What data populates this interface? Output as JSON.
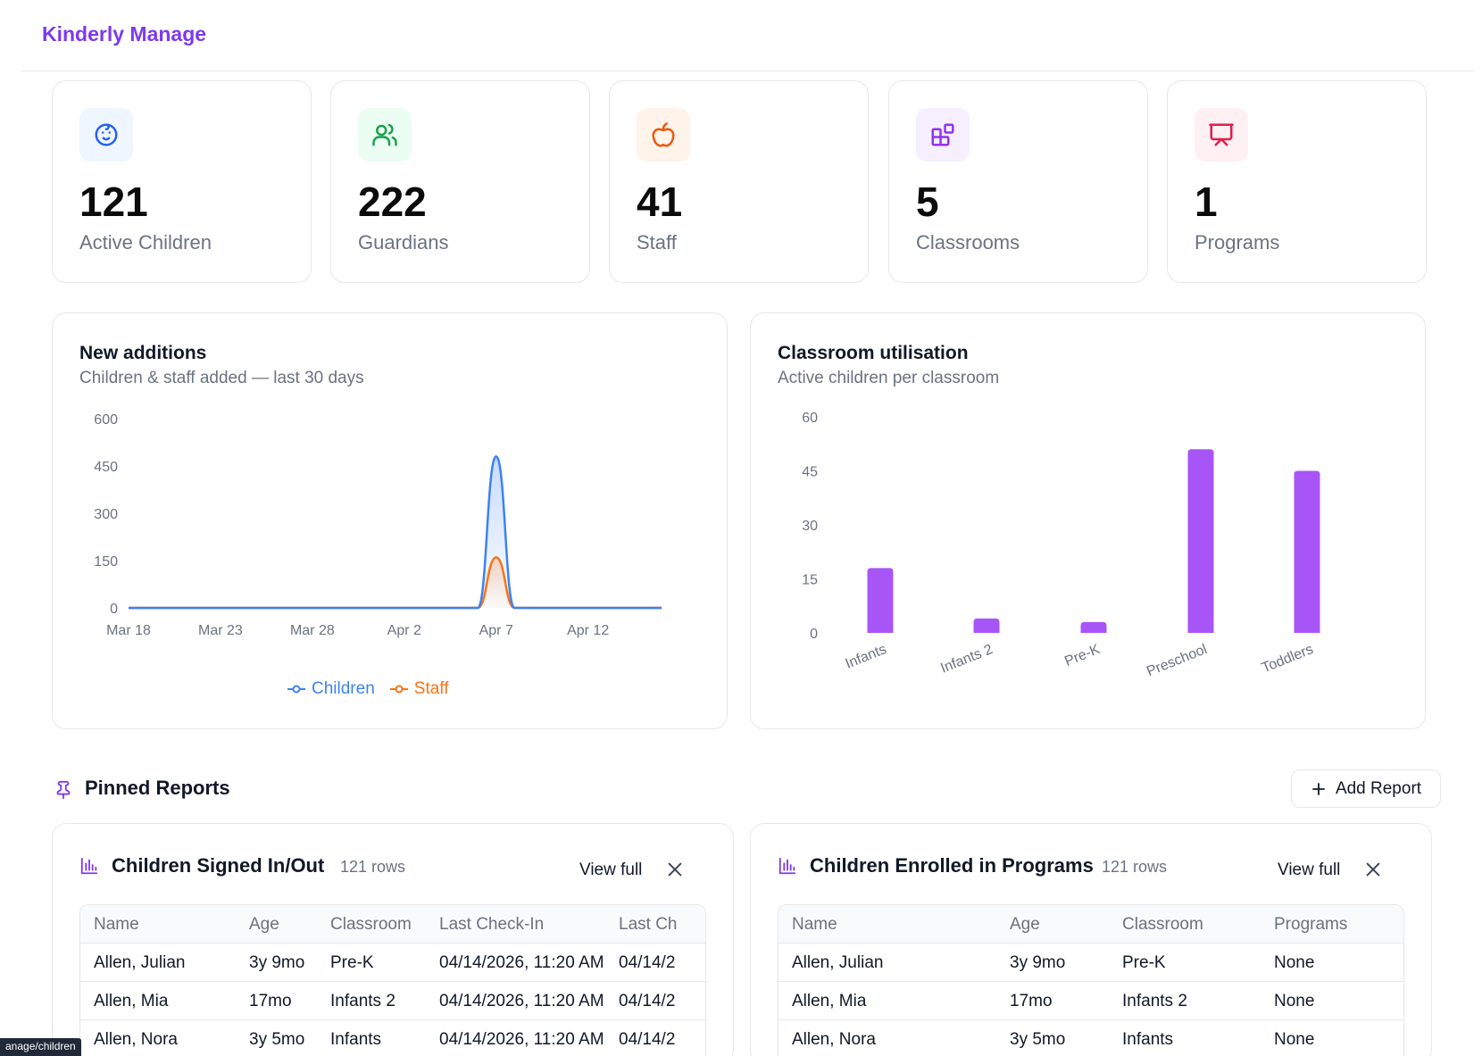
{
  "app": {
    "brand": "Kinderly Manage"
  },
  "stats": [
    {
      "value": "121",
      "label": "Active Children",
      "icon": "baby-face-icon",
      "icon_color": "#2563eb",
      "bg": "#eff6ff"
    },
    {
      "value": "222",
      "label": "Guardians",
      "icon": "users-icon",
      "icon_color": "#16a34a",
      "bg": "#ecfdf3"
    },
    {
      "value": "41",
      "label": "Staff",
      "icon": "apple-icon",
      "icon_color": "#ea580c",
      "bg": "#fff3ea"
    },
    {
      "value": "5",
      "label": "Classrooms",
      "icon": "blocks-icon",
      "icon_color": "#9333ea",
      "bg": "#f5efff"
    },
    {
      "value": "1",
      "label": "Programs",
      "icon": "presentation-icon",
      "icon_color": "#e11d48",
      "bg": "#fff0f3"
    }
  ],
  "new_additions": {
    "title": "New additions",
    "subtitle": "Children & staff added — last 30 days",
    "legend": [
      {
        "name": "Children",
        "color": "#3b82f6"
      },
      {
        "name": "Staff",
        "color": "#f97316"
      }
    ]
  },
  "classroom_utilisation": {
    "title": "Classroom utilisation",
    "subtitle": "Active children per classroom",
    "bar_color": "#a855f7"
  },
  "chart_data": [
    {
      "type": "area",
      "title": "New additions",
      "subtitle": "Children & staff added — last 30 days",
      "x_ticks": [
        "Mar 18",
        "Mar 23",
        "Mar 28",
        "Apr 2",
        "Apr 7",
        "Apr 12"
      ],
      "y_ticks": [
        "0",
        "150",
        "300",
        "450",
        "600"
      ],
      "ylim": [
        0,
        600
      ],
      "x": [
        "Mar 18",
        "Mar 19",
        "Mar 20",
        "Mar 21",
        "Mar 22",
        "Mar 23",
        "Mar 24",
        "Mar 25",
        "Mar 26",
        "Mar 27",
        "Mar 28",
        "Mar 29",
        "Mar 30",
        "Mar 31",
        "Apr 1",
        "Apr 2",
        "Apr 3",
        "Apr 4",
        "Apr 5",
        "Apr 6",
        "Apr 7",
        "Apr 8",
        "Apr 9",
        "Apr 10",
        "Apr 11",
        "Apr 12",
        "Apr 13",
        "Apr 14",
        "Apr 15",
        "Apr 16"
      ],
      "series": [
        {
          "name": "Children",
          "values": [
            0,
            0,
            0,
            0,
            0,
            0,
            0,
            0,
            0,
            0,
            0,
            0,
            0,
            0,
            0,
            0,
            0,
            0,
            0,
            0,
            480,
            0,
            0,
            0,
            0,
            0,
            0,
            0,
            0,
            0
          ]
        },
        {
          "name": "Staff",
          "values": [
            0,
            0,
            0,
            0,
            0,
            0,
            0,
            0,
            0,
            0,
            0,
            0,
            0,
            0,
            0,
            0,
            0,
            0,
            0,
            0,
            160,
            0,
            0,
            0,
            0,
            0,
            0,
            0,
            0,
            0
          ]
        }
      ],
      "legend": "bottom-center",
      "grid": false
    },
    {
      "type": "bar",
      "title": "Classroom utilisation",
      "subtitle": "Active children per classroom",
      "categories": [
        "Infants",
        "Infants 2",
        "Pre-K",
        "Preschool",
        "Toddlers"
      ],
      "values": [
        18,
        4,
        3,
        51,
        45
      ],
      "y_ticks": [
        "0",
        "15",
        "30",
        "45",
        "60"
      ],
      "ylim": [
        0,
        60
      ],
      "grid": false
    }
  ],
  "pinned": {
    "title": "Pinned Reports",
    "add_label": "Add Report",
    "reports": [
      {
        "title": "Children Signed In/Out",
        "rows_label": "121 rows",
        "view_full": "View full",
        "columns": [
          "Name",
          "Age",
          "Classroom",
          "Last Check-In",
          "Last Ch"
        ],
        "rows": [
          [
            "Allen, Julian",
            "3y 9mo",
            "Pre-K",
            "04/14/2026, 11:20 AM",
            "04/14/2"
          ],
          [
            "Allen, Mia",
            "17mo",
            "Infants 2",
            "04/14/2026, 11:20 AM",
            "04/14/2"
          ],
          [
            "Allen, Nora",
            "3y 5mo",
            "Infants",
            "04/14/2026, 11:20 AM",
            "04/14/2"
          ]
        ]
      },
      {
        "title": "Children Enrolled in Programs",
        "rows_label": "121 rows",
        "view_full": "View full",
        "columns": [
          "Name",
          "Age",
          "Classroom",
          "Programs"
        ],
        "rows": [
          [
            "Allen, Julian",
            "3y 9mo",
            "Pre-K",
            "None"
          ],
          [
            "Allen, Mia",
            "17mo",
            "Infants 2",
            "None"
          ],
          [
            "Allen, Nora",
            "3y 5mo",
            "Infants",
            "None"
          ]
        ]
      }
    ]
  },
  "status_url": "anage/children"
}
